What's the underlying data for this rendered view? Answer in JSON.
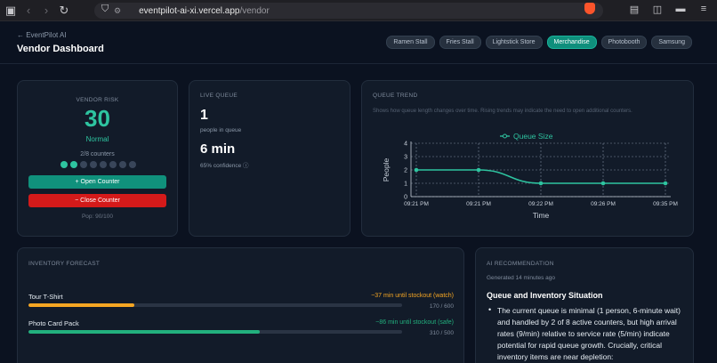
{
  "browser": {
    "url_host": "eventpilot-ai-xi.vercel.app",
    "url_path": "/vendor"
  },
  "header": {
    "back_label": "← EventPilot AI",
    "title": "Vendor Dashboard",
    "tabs": [
      {
        "label": "Ramen Stall",
        "active": false
      },
      {
        "label": "Fries Stall",
        "active": false
      },
      {
        "label": "Lightstick Store",
        "active": false
      },
      {
        "label": "Merchandise",
        "active": true
      },
      {
        "label": "Photobooth",
        "active": false
      },
      {
        "label": "Samsung",
        "active": false
      }
    ]
  },
  "risk": {
    "label": "VENDOR RISK",
    "value": "30",
    "status": "Normal",
    "counters": "2/8 counters",
    "active_counters": 2,
    "total_counters": 8,
    "open_label": "+ Open Counter",
    "close_label": "− Close Counter",
    "pop": "Pop: 90/100"
  },
  "queue": {
    "label": "LIVE QUEUE",
    "count": "1",
    "count_sub": "people in queue",
    "wait": "6 min",
    "confidence": "65% confidence ⓘ"
  },
  "trend": {
    "label": "QUEUE TREND",
    "description": "Shows how queue length changes over time. Rising trends may indicate the need to open additional counters."
  },
  "chart_data": {
    "type": "line",
    "x": [
      "09:21 PM",
      "09:21 PM",
      "09:22 PM",
      "09:26 PM",
      "09:35 PM"
    ],
    "series": [
      {
        "name": "Queue Size",
        "values": [
          2,
          2,
          1,
          1,
          1
        ]
      }
    ],
    "xlabel": "Time",
    "ylabel": "People",
    "ylim": [
      0,
      4
    ],
    "yticks": [
      "0",
      "1",
      "2",
      "3",
      "4"
    ],
    "grid": true,
    "legend": "top-center",
    "color": "#2ec4a0"
  },
  "inventory": {
    "label": "INVENTORY FORECAST",
    "items": [
      {
        "name": "Tour T-Shirt",
        "eta": "~37 min until stockout (watch)",
        "count": "170 / 600",
        "fraction": 0.283,
        "color": "#f5a623"
      },
      {
        "name": "Photo Card Pack",
        "eta": "~86 min until stockout (safe)",
        "count": "310 / 500",
        "fraction": 0.62,
        "color": "#22b07d"
      }
    ]
  },
  "reco": {
    "label": "AI RECOMMENDATION",
    "generated": "Generated 14 minutes ago",
    "title": "Queue and Inventory Situation",
    "body": "The current queue is minimal (1 person, 6-minute wait) and handled by 2 of 8 active counters, but high arrival rates (9/min) relative to service rate (5/min) indicate potential for rapid queue growth. Crucially, critical inventory items are near depletion:"
  }
}
